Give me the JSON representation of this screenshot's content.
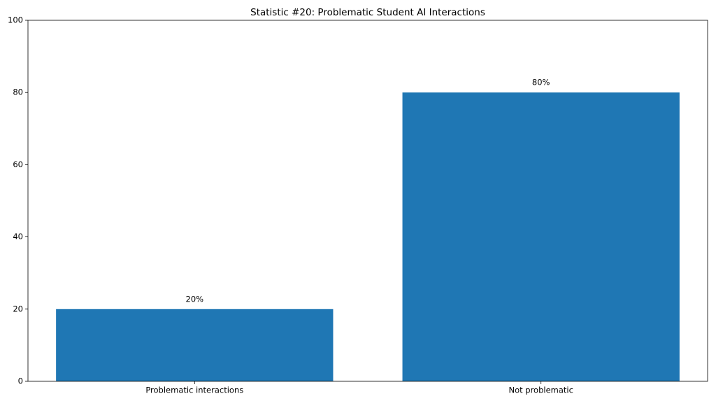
{
  "chart_data": {
    "type": "bar",
    "title": "Statistic #20: Problematic Student AI Interactions",
    "categories": [
      "Problematic interactions",
      "Not problematic"
    ],
    "values": [
      20,
      80
    ],
    "value_labels": [
      "20%",
      "80%"
    ],
    "color": "#1f77b4",
    "ylim": [
      0,
      100
    ],
    "yticks": [
      0,
      20,
      40,
      60,
      80,
      100
    ],
    "grid": false
  }
}
